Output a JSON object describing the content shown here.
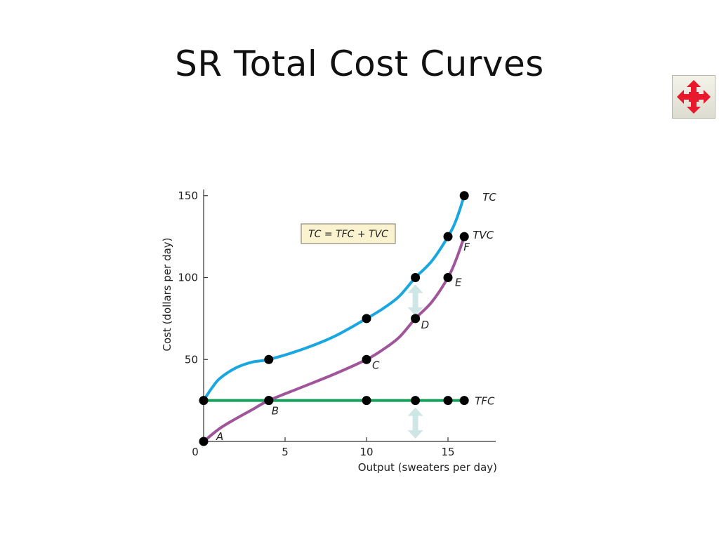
{
  "slide": {
    "title": "SR Total Cost Curves",
    "nav_icon": "four-way-arrows-icon",
    "nav_icon_color": "#e8192c"
  },
  "chart_data": {
    "type": "line",
    "xlabel": "Output (sweaters per day)",
    "ylabel": "Cost (dollars per day)",
    "xlim": [
      0,
      18
    ],
    "ylim": [
      0,
      150
    ],
    "xticks": [
      0,
      5,
      10,
      15
    ],
    "yticks": [
      50,
      100,
      150
    ],
    "grid": false,
    "formula": "TC = TFC + TVC",
    "series": [
      {
        "name": "TC",
        "color": "#1aa7e0",
        "points": [
          [
            0,
            25
          ],
          [
            4,
            50
          ],
          [
            10,
            75
          ],
          [
            13,
            100
          ],
          [
            15,
            125
          ],
          [
            16,
            150
          ]
        ],
        "curve": [
          [
            0,
            25
          ],
          [
            0.5,
            32.5
          ],
          [
            1,
            38.5
          ],
          [
            2,
            45
          ],
          [
            3,
            48.5
          ],
          [
            4,
            50
          ],
          [
            6,
            56
          ],
          [
            8,
            64
          ],
          [
            10,
            75
          ],
          [
            11,
            81
          ],
          [
            12,
            88.5
          ],
          [
            13,
            100
          ],
          [
            14,
            110
          ],
          [
            15,
            125
          ],
          [
            15.5,
            135
          ],
          [
            16,
            150
          ]
        ]
      },
      {
        "name": "TVC",
        "color": "#a0559a",
        "points": [
          [
            0,
            0
          ],
          [
            4,
            25
          ],
          [
            10,
            50
          ],
          [
            13,
            75
          ],
          [
            15,
            100
          ],
          [
            16,
            125
          ]
        ],
        "curve": [
          [
            0,
            0
          ],
          [
            1,
            8
          ],
          [
            2,
            14
          ],
          [
            3,
            19.5
          ],
          [
            4,
            25
          ],
          [
            6,
            33
          ],
          [
            8,
            41
          ],
          [
            10,
            50
          ],
          [
            11,
            56
          ],
          [
            12,
            63.5
          ],
          [
            13,
            75
          ],
          [
            14,
            85
          ],
          [
            15,
            100
          ],
          [
            15.5,
            111
          ],
          [
            16,
            125
          ]
        ]
      },
      {
        "name": "TFC",
        "color": "#12a05a",
        "points": [
          [
            4,
            25
          ],
          [
            10,
            25
          ],
          [
            13,
            25
          ],
          [
            15,
            25
          ],
          [
            16,
            25
          ]
        ],
        "curve": [
          [
            0,
            25
          ],
          [
            16,
            25
          ]
        ]
      }
    ],
    "point_labels": [
      {
        "label": "A",
        "x": 0,
        "y": 0
      },
      {
        "label": "B",
        "x": 4,
        "y": 25
      },
      {
        "label": "C",
        "x": 10,
        "y": 50
      },
      {
        "label": "D",
        "x": 13,
        "y": 75
      },
      {
        "label": "E",
        "x": 15,
        "y": 100
      },
      {
        "label": "F",
        "x": 16,
        "y": 125
      }
    ],
    "arrows": [
      {
        "x": 13,
        "y1": 75,
        "y2": 100
      },
      {
        "x": 13,
        "y1": 0,
        "y2": 25
      }
    ],
    "arrow_color": "#cfe6e6"
  }
}
